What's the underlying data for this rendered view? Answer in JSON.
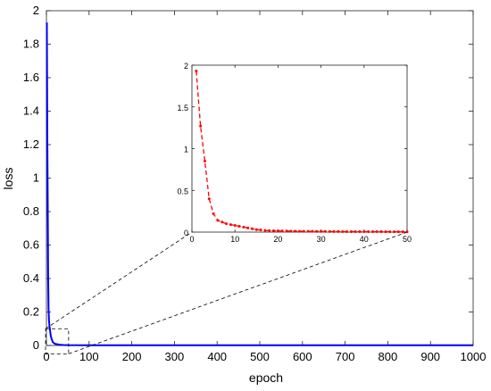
{
  "chart_data": [
    {
      "id": "main",
      "type": "line",
      "title": "",
      "xlabel": "epoch",
      "ylabel": "loss",
      "xlim": [
        0,
        1000
      ],
      "ylim": [
        0,
        2
      ],
      "xticks": [
        0,
        100,
        200,
        300,
        400,
        500,
        600,
        700,
        800,
        900,
        1000
      ],
      "xtick_labels": [
        "0",
        "100",
        "200",
        "300",
        "400",
        "500",
        "600",
        "700",
        "800",
        "900",
        "1000"
      ],
      "yticks": [
        0,
        0.2,
        0.4,
        0.6,
        0.8,
        1,
        1.2,
        1.4,
        1.6,
        1.8,
        2
      ],
      "ytick_labels": [
        "0",
        "0.2",
        "0.4",
        "0.6",
        "0.8",
        "1",
        "1.2",
        "1.4",
        "1.6",
        "1.8",
        "2"
      ],
      "grid": false,
      "series": [
        {
          "color": "#0000ff",
          "style": "solid",
          "x": [
            1,
            2,
            3,
            4,
            5,
            6,
            7,
            8,
            9,
            10,
            12,
            15,
            20,
            30,
            40,
            50,
            100,
            200,
            400,
            600,
            800,
            1000
          ],
          "y": [
            1.93,
            1.28,
            0.88,
            0.42,
            0.22,
            0.15,
            0.12,
            0.1,
            0.08,
            0.06,
            0.04,
            0.02,
            0.01,
            0.005,
            0.003,
            0.002,
            0.001,
            0.001,
            0.001,
            0.001,
            0.001,
            0.001
          ]
        }
      ],
      "zoom_region": {
        "x": [
          -2,
          52
        ],
        "y": [
          -0.05,
          0.1
        ]
      }
    },
    {
      "id": "inset",
      "type": "line",
      "title": "",
      "xlabel": "",
      "ylabel": "",
      "xlim": [
        0,
        50
      ],
      "ylim": [
        0,
        2
      ],
      "xticks": [
        0,
        10,
        20,
        30,
        40,
        50
      ],
      "xtick_labels": [
        "0",
        "10",
        "20",
        "30",
        "40",
        "50"
      ],
      "yticks": [
        0,
        0.5,
        1,
        1.5,
        2
      ],
      "ytick_labels": [
        "0",
        "0.5",
        "1",
        "1.5",
        "2"
      ],
      "grid": false,
      "series": [
        {
          "color": "#ff0000",
          "style": "dashed",
          "marker": "dot",
          "x": [
            1,
            2,
            3,
            4,
            5,
            6,
            7,
            8,
            9,
            10,
            11,
            12,
            13,
            14,
            15,
            16,
            17,
            18,
            19,
            20,
            21,
            22,
            23,
            24,
            25,
            26,
            27,
            28,
            29,
            30,
            31,
            32,
            33,
            34,
            35,
            36,
            37,
            38,
            39,
            40,
            41,
            42,
            43,
            44,
            45,
            46,
            47,
            48,
            49,
            50
          ],
          "y": [
            1.93,
            1.27,
            0.85,
            0.4,
            0.22,
            0.14,
            0.12,
            0.1,
            0.09,
            0.08,
            0.07,
            0.06,
            0.05,
            0.04,
            0.03,
            0.025,
            0.02,
            0.018,
            0.016,
            0.015,
            0.014,
            0.013,
            0.012,
            0.011,
            0.01,
            0.01,
            0.009,
            0.009,
            0.008,
            0.008,
            0.008,
            0.007,
            0.007,
            0.007,
            0.006,
            0.006,
            0.006,
            0.006,
            0.005,
            0.005,
            0.005,
            0.005,
            0.005,
            0.005,
            0.004,
            0.004,
            0.004,
            0.004,
            0.004,
            0.004
          ]
        }
      ]
    }
  ]
}
